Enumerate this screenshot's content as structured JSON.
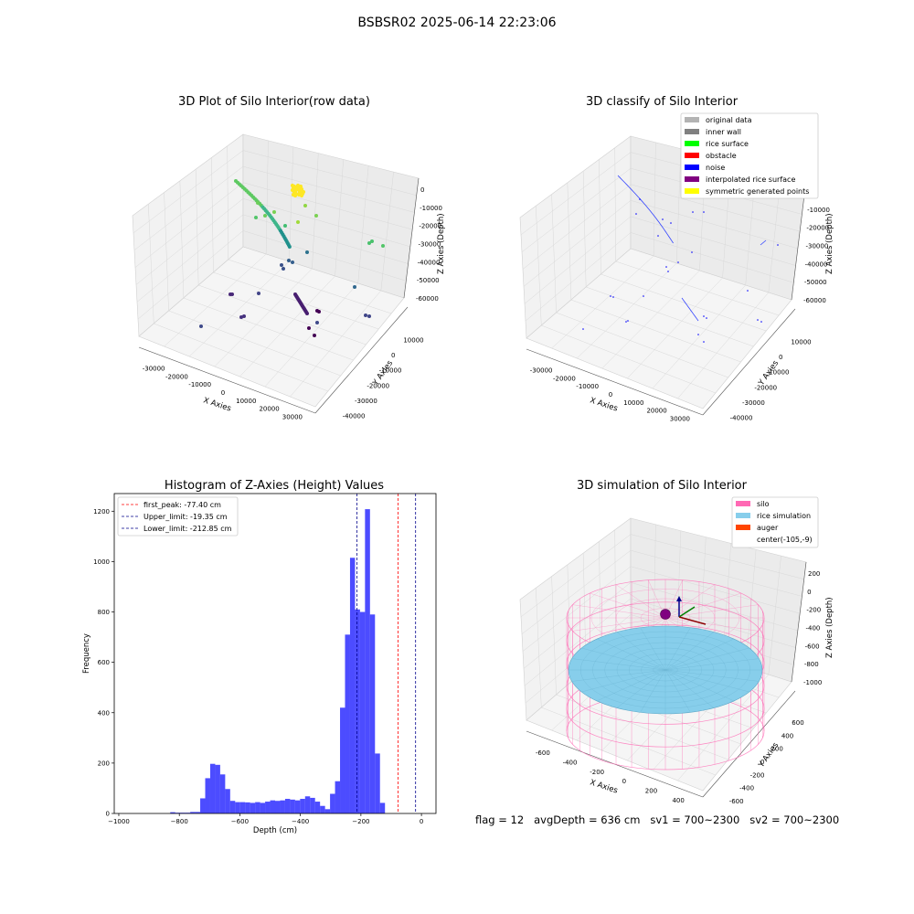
{
  "suptitle": "BSBSR02 2025-06-14 22:23:06",
  "panels": {
    "p1": {
      "title": "3D Plot of Silo Interior(row data)",
      "xlabel": "X Axies",
      "ylabel": "Y Axies",
      "zlabel": "Z Axies (Depth)",
      "x_ticks": [
        "-30000",
        "-20000",
        "-10000",
        "0",
        "10000",
        "20000",
        "30000"
      ],
      "y_ticks": [
        "10000",
        "0",
        "-10000",
        "-20000",
        "-30000",
        "-40000"
      ],
      "z_ticks": [
        "0",
        "-10000",
        "-20000",
        "-30000",
        "-40000",
        "-50000",
        "-60000"
      ]
    },
    "p2": {
      "title": "3D classify of Silo Interior",
      "xlabel": "X Axies",
      "ylabel": "Y Axies",
      "zlabel": "Z Axies (Depth)",
      "x_ticks": [
        "-30000",
        "-20000",
        "-10000",
        "0",
        "10000",
        "20000",
        "30000"
      ],
      "y_ticks": [
        "10000",
        "0",
        "-10000",
        "-20000",
        "-30000",
        "-40000"
      ],
      "z_ticks": [
        "0",
        "-10000",
        "-20000",
        "-30000",
        "-40000",
        "-50000",
        "-60000"
      ],
      "legend": [
        {
          "label": "original data",
          "color": "#b3b3b3"
        },
        {
          "label": "inner wall",
          "color": "#808080"
        },
        {
          "label": "rice surface",
          "color": "#00ff00"
        },
        {
          "label": "obstacle",
          "color": "#ff0000"
        },
        {
          "label": "noise",
          "color": "#0000ff"
        },
        {
          "label": "interpolated rice surface",
          "color": "#800080"
        },
        {
          "label": "symmetric generated points",
          "color": "#ffff00"
        }
      ]
    },
    "p4": {
      "title": "3D simulation of Silo Interior",
      "xlabel": "X Axies",
      "ylabel": "Y Axies",
      "zlabel": "Z Axies (Depth)",
      "x_ticks": [
        "-600",
        "-400",
        "-200",
        "0",
        "200",
        "400"
      ],
      "y_ticks": [
        "600",
        "400",
        "200",
        "0",
        "-200",
        "-400",
        "-600"
      ],
      "z_ticks": [
        "200",
        "0",
        "-200",
        "-400",
        "-600",
        "-800",
        "-1000"
      ],
      "legend": [
        {
          "label": "silo",
          "color": "#ff69b4"
        },
        {
          "label": "rice simulation",
          "color": "#87ceeb"
        },
        {
          "label": "auger",
          "color": "#ff4500"
        },
        {
          "label": "center(-105,-9)",
          "color": ""
        }
      ]
    }
  },
  "chart_data": [
    {
      "type": "bar",
      "title": "Histogram of Z-Axies (Height) Values",
      "xlabel": "Depth (cm)",
      "ylabel": "Frequency",
      "xlim": [
        -1015,
        48
      ],
      "ylim": [
        0,
        1270
      ],
      "x_ticks": [
        -1000,
        -800,
        -600,
        -400,
        -200,
        0
      ],
      "y_ticks": [
        0,
        200,
        400,
        600,
        800,
        1000,
        1200
      ],
      "bin_width": 16.5,
      "bin_start": -830,
      "values": [
        5,
        3,
        3,
        3,
        6,
        6,
        60,
        140,
        197,
        193,
        155,
        97,
        50,
        45,
        45,
        44,
        42,
        45,
        42,
        47,
        52,
        50,
        52,
        58,
        55,
        52,
        58,
        68,
        62,
        47,
        30,
        17,
        78,
        128,
        420,
        710,
        1015,
        810,
        800,
        1208,
        790,
        238,
        42
      ],
      "bar_color": "#0000ff",
      "bar_alpha": 0.7,
      "vlines": [
        {
          "label": "first_peak: -77.40 cm",
          "x": -77.4,
          "color": "#ff0000"
        },
        {
          "label": "Upper_limit: -19.35 cm",
          "x": -19.35,
          "color": "#00008b"
        },
        {
          "label": "Lower_limit: -212.85 cm",
          "x": -212.85,
          "color": "#00008b"
        }
      ],
      "legend_position": "upper left"
    }
  ],
  "footer": "flag = 12   avgDepth = 636 cm   sv1 = 700~2300   sv2 = 700~2300"
}
